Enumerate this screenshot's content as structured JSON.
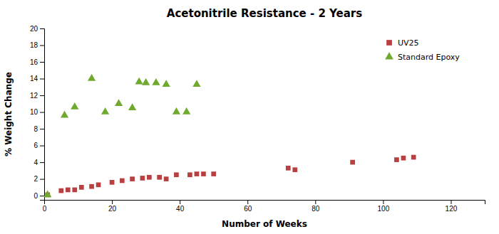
{
  "chart_data": {
    "type": "scatter",
    "title": "Acetonitrile Resistance - 2 Years",
    "xlabel": "Number of Weeks",
    "ylabel": "% Weight Change",
    "xlim": [
      0,
      130
    ],
    "ylim": [
      -0.5,
      20
    ],
    "xticks": [
      0,
      20,
      40,
      60,
      80,
      100,
      120
    ],
    "yticks": [
      0,
      2,
      4,
      6,
      8,
      10,
      12,
      14,
      16,
      18,
      20
    ],
    "grid": false,
    "legend": "upper right",
    "series": [
      {
        "name": "UV25",
        "color": "#b94040",
        "marker": "square",
        "x": [
          1,
          5,
          7,
          9,
          11,
          14,
          16,
          20,
          23,
          26,
          29,
          31,
          34,
          36,
          39,
          43,
          45,
          47,
          50,
          72,
          74,
          91,
          104,
          106,
          109
        ],
        "values": [
          0.1,
          0.6,
          0.7,
          0.7,
          1.0,
          1.1,
          1.3,
          1.6,
          1.8,
          2.0,
          2.1,
          2.2,
          2.2,
          2.0,
          2.5,
          2.5,
          2.6,
          2.6,
          2.6,
          3.3,
          3.1,
          4.0,
          4.3,
          4.5,
          4.6
        ]
      },
      {
        "name": "Standard Epoxy",
        "color": "#6faa2e",
        "marker": "triangle",
        "x": [
          1,
          6,
          9,
          14,
          18,
          22,
          26,
          28,
          30,
          33,
          36,
          39,
          42,
          45
        ],
        "values": [
          0.1,
          9.6,
          10.6,
          14.0,
          10.0,
          11.0,
          10.5,
          13.6,
          13.5,
          13.5,
          13.3,
          10.0,
          10.0,
          13.3
        ]
      }
    ]
  }
}
